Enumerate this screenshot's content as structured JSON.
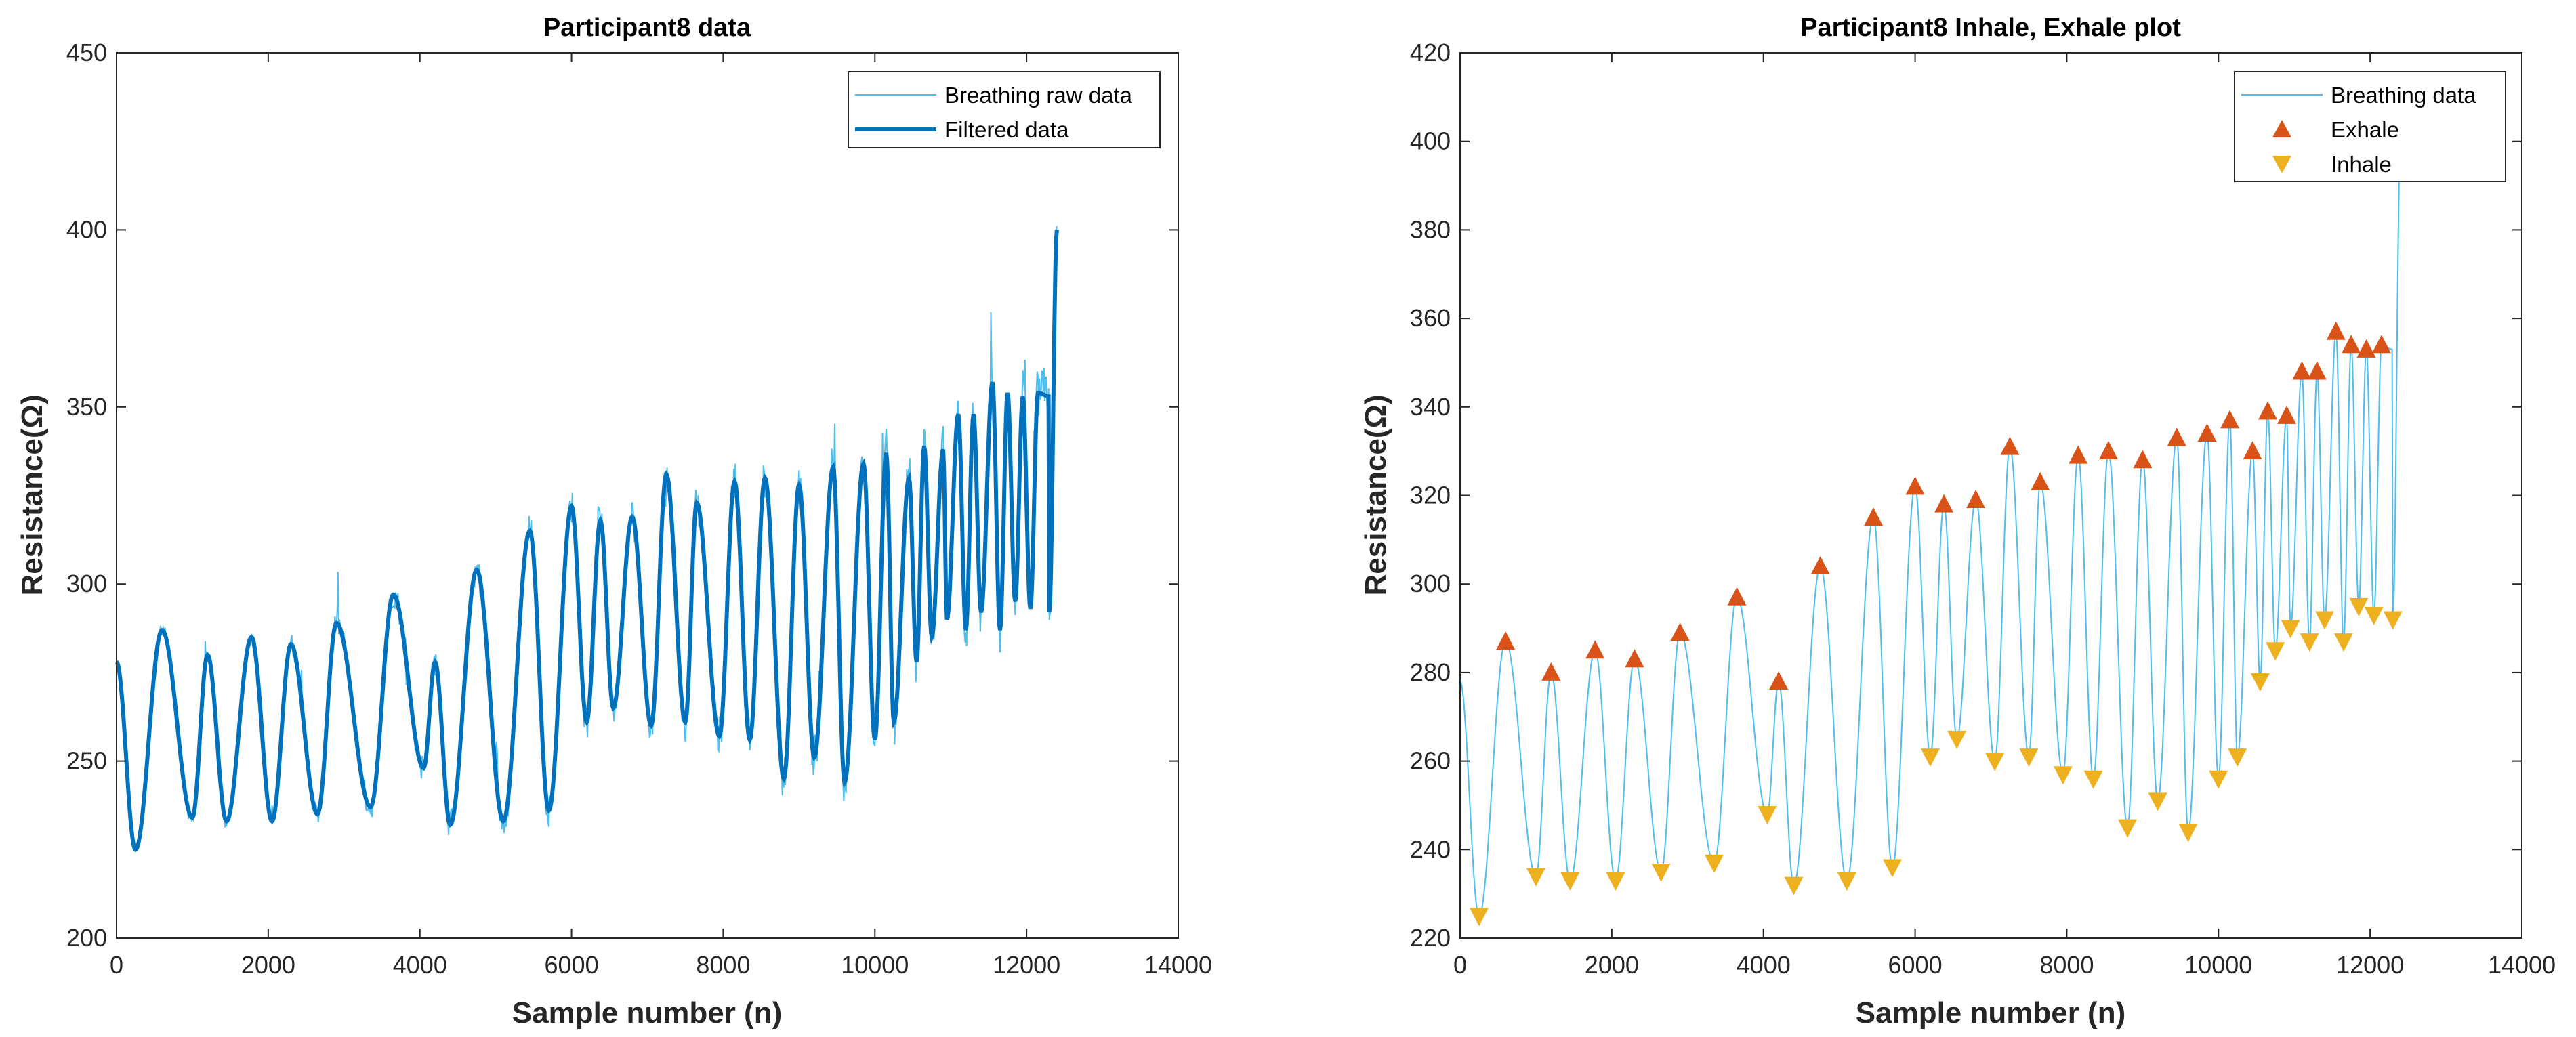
{
  "colors": {
    "raw": "#4DBEEE",
    "filtered": "#0072BD",
    "exhale": "#D95319",
    "inhale": "#EDB120",
    "axis": "#262626"
  },
  "chart_data": [
    {
      "type": "line",
      "title": "Participant8 data",
      "xlabel": "Sample number (n)",
      "ylabel": "Resistance(Ω)",
      "xlim": [
        0,
        14000
      ],
      "ylim": [
        200,
        450
      ],
      "xticks": [
        0,
        2000,
        4000,
        6000,
        8000,
        10000,
        12000,
        14000
      ],
      "yticks": [
        200,
        250,
        300,
        350,
        400,
        450
      ],
      "legend_position": "top-right",
      "series": [
        {
          "name": "Breathing raw data",
          "style": "thin",
          "description": "noisy raw signal following the filtered curve with spikes"
        },
        {
          "name": "Filtered data",
          "style": "thick"
        }
      ],
      "extrema": {
        "peaks": [
          [
            0,
            278
          ],
          [
            600,
            287
          ],
          [
            1200,
            280
          ],
          [
            1780,
            285
          ],
          [
            2300,
            283
          ],
          [
            2900,
            289
          ],
          [
            3650,
            297
          ],
          [
            4200,
            278
          ],
          [
            4750,
            304
          ],
          [
            5450,
            315
          ],
          [
            6000,
            322
          ],
          [
            6380,
            318
          ],
          [
            6800,
            319
          ],
          [
            7250,
            331
          ],
          [
            7650,
            323
          ],
          [
            8150,
            329
          ],
          [
            8550,
            330
          ],
          [
            9000,
            328
          ],
          [
            9450,
            333
          ],
          [
            9850,
            334
          ],
          [
            10150,
            337
          ],
          [
            10450,
            330
          ],
          [
            10650,
            339
          ],
          [
            10900,
            338
          ],
          [
            11100,
            348
          ],
          [
            11300,
            348
          ],
          [
            11550,
            357
          ],
          [
            11750,
            354
          ],
          [
            11950,
            353
          ],
          [
            12150,
            354
          ],
          [
            12300,
            353
          ],
          [
            12400,
            400
          ]
        ],
        "troughs": [
          [
            250,
            225
          ],
          [
            1000,
            234
          ],
          [
            1450,
            233
          ],
          [
            2050,
            233
          ],
          [
            2650,
            235
          ],
          [
            3350,
            237
          ],
          [
            4050,
            248
          ],
          [
            4400,
            232
          ],
          [
            5100,
            233
          ],
          [
            5700,
            236
          ],
          [
            6200,
            261
          ],
          [
            6550,
            265
          ],
          [
            7050,
            260
          ],
          [
            7500,
            261
          ],
          [
            7950,
            257
          ],
          [
            8350,
            256
          ],
          [
            8800,
            245
          ],
          [
            9200,
            251
          ],
          [
            9600,
            244
          ],
          [
            10000,
            256
          ],
          [
            10250,
            261
          ],
          [
            10550,
            278
          ],
          [
            10750,
            285
          ],
          [
            10950,
            290
          ],
          [
            11200,
            287
          ],
          [
            11400,
            292
          ],
          [
            11650,
            287
          ],
          [
            11850,
            295
          ],
          [
            12050,
            293
          ],
          [
            12300,
            292
          ]
        ]
      }
    },
    {
      "type": "line",
      "title": "Participant8 Inhale, Exhale plot",
      "xlabel": "Sample number (n)",
      "ylabel": "Resistance(Ω)",
      "xlim": [
        0,
        14000
      ],
      "ylim": [
        220,
        420
      ],
      "xticks": [
        0,
        2000,
        4000,
        6000,
        8000,
        10000,
        12000,
        14000
      ],
      "yticks": [
        220,
        240,
        260,
        280,
        300,
        320,
        340,
        360,
        380,
        400,
        420
      ],
      "legend_position": "top-right",
      "series": [
        {
          "name": "Breathing data",
          "style": "line"
        },
        {
          "name": "Exhale",
          "style": "up-triangle",
          "points": [
            [
              600,
              287
            ],
            [
              1200,
              280
            ],
            [
              1780,
              285
            ],
            [
              2300,
              283
            ],
            [
              2900,
              289
            ],
            [
              3650,
              297
            ],
            [
              4200,
              278
            ],
            [
              4750,
              304
            ],
            [
              5450,
              315
            ],
            [
              6000,
              322
            ],
            [
              6380,
              318
            ],
            [
              6800,
              319
            ],
            [
              7250,
              331
            ],
            [
              7650,
              323
            ],
            [
              8150,
              329
            ],
            [
              8550,
              330
            ],
            [
              9000,
              328
            ],
            [
              9450,
              333
            ],
            [
              9850,
              334
            ],
            [
              10150,
              337
            ],
            [
              10450,
              330
            ],
            [
              10650,
              339
            ],
            [
              10900,
              338
            ],
            [
              11100,
              348
            ],
            [
              11300,
              348
            ],
            [
              11550,
              357
            ],
            [
              11750,
              354
            ],
            [
              11950,
              353
            ],
            [
              12150,
              354
            ]
          ]
        },
        {
          "name": "Inhale",
          "style": "down-triangle",
          "points": [
            [
              250,
              225
            ],
            [
              1000,
              234
            ],
            [
              1450,
              233
            ],
            [
              2050,
              233
            ],
            [
              2650,
              235
            ],
            [
              3350,
              237
            ],
            [
              4050,
              248
            ],
            [
              4400,
              232
            ],
            [
              5100,
              233
            ],
            [
              5700,
              236
            ],
            [
              6200,
              261
            ],
            [
              6550,
              265
            ],
            [
              7050,
              260
            ],
            [
              7500,
              261
            ],
            [
              7950,
              257
            ],
            [
              8350,
              256
            ],
            [
              8800,
              245
            ],
            [
              9200,
              251
            ],
            [
              9600,
              244
            ],
            [
              10000,
              256
            ],
            [
              10250,
              261
            ],
            [
              10550,
              278
            ],
            [
              10750,
              285
            ],
            [
              10950,
              290
            ],
            [
              11200,
              287
            ],
            [
              11400,
              292
            ],
            [
              11650,
              287
            ],
            [
              11850,
              295
            ],
            [
              12050,
              293
            ],
            [
              12300,
              292
            ]
          ]
        }
      ]
    }
  ]
}
